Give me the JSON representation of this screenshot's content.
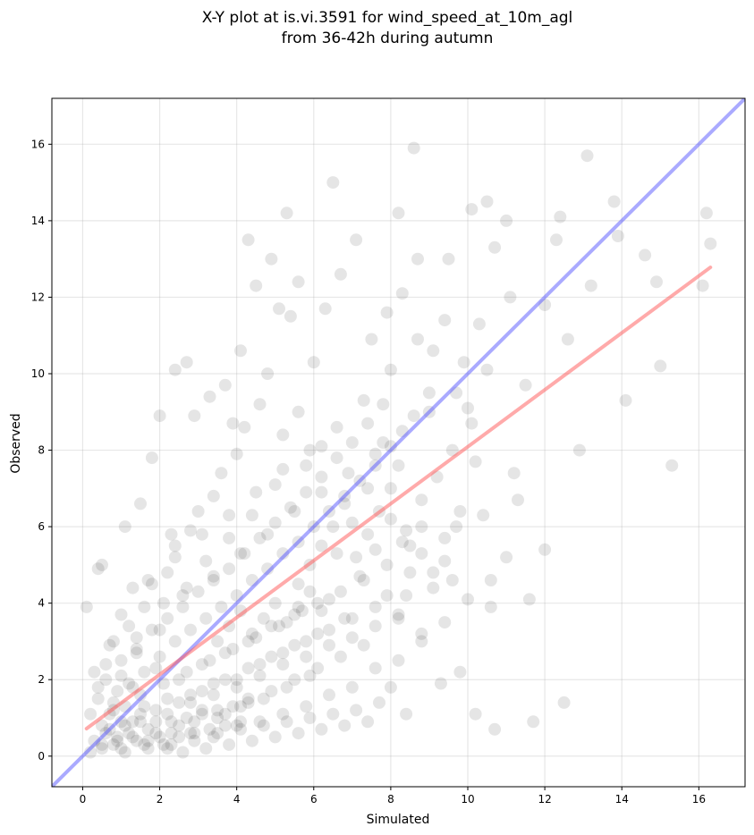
{
  "chart_data": {
    "type": "scatter",
    "title": "X-Y plot at is.vi.3591 for wind_speed_at_10m_agl",
    "subtitle": "from 36-42h during autumn",
    "xlabel": "Simulated",
    "ylabel": "Observed",
    "xlim": [
      -0.8,
      17.2
    ],
    "ylim": [
      -0.8,
      17.2
    ],
    "xticks": [
      0,
      2,
      4,
      6,
      8,
      10,
      12,
      14,
      16
    ],
    "yticks": [
      0,
      2,
      4,
      6,
      8,
      10,
      12,
      14,
      16
    ],
    "grid": true,
    "point_color": "#000000",
    "point_opacity": 0.1,
    "reference_line": {
      "color": "#5555ff",
      "opacity": 0.5,
      "from": [
        -0.8,
        -0.8
      ],
      "to": [
        17.2,
        17.2
      ]
    },
    "regression_line": {
      "color": "#ff5555",
      "opacity": 0.5,
      "from": [
        0.1,
        0.72
      ],
      "to": [
        16.3,
        12.78
      ]
    },
    "points": [
      [
        0.3,
        0.4
      ],
      [
        0.5,
        0.8
      ],
      [
        0.7,
        1.1
      ],
      [
        0.9,
        0.5
      ],
      [
        1.1,
        1.3
      ],
      [
        1.3,
        0.9
      ],
      [
        1.5,
        1.6
      ],
      [
        1.7,
        0.7
      ],
      [
        1.9,
        1.2
      ],
      [
        2.1,
        1.9
      ],
      [
        2.3,
        0.6
      ],
      [
        2.5,
        1.4
      ],
      [
        2.7,
        2.2
      ],
      [
        2.9,
        0.9
      ],
      [
        3.1,
        1.7
      ],
      [
        3.3,
        2.5
      ],
      [
        3.5,
        1.0
      ],
      [
        3.7,
        2.0
      ],
      [
        3.9,
        2.8
      ],
      [
        4.1,
        1.3
      ],
      [
        4.3,
        2.3
      ],
      [
        4.5,
        3.1
      ],
      [
        4.7,
        1.5
      ],
      [
        4.9,
        2.6
      ],
      [
        5.1,
        3.4
      ],
      [
        5.3,
        1.8
      ],
      [
        5.5,
        2.9
      ],
      [
        5.7,
        3.8
      ],
      [
        5.9,
        2.1
      ],
      [
        6.1,
        3.2
      ],
      [
        0.4,
        1.8
      ],
      [
        0.6,
        2.4
      ],
      [
        0.8,
        3.0
      ],
      [
        1.0,
        2.1
      ],
      [
        1.2,
        3.4
      ],
      [
        1.4,
        2.7
      ],
      [
        1.6,
        3.9
      ],
      [
        1.8,
        4.5
      ],
      [
        2.0,
        3.3
      ],
      [
        2.2,
        4.8
      ],
      [
        2.4,
        5.5
      ],
      [
        2.6,
        4.2
      ],
      [
        2.8,
        5.9
      ],
      [
        3.0,
        6.4
      ],
      [
        3.2,
        5.1
      ],
      [
        3.4,
        6.8
      ],
      [
        3.6,
        7.4
      ],
      [
        3.8,
        5.7
      ],
      [
        4.0,
        7.9
      ],
      [
        4.2,
        8.6
      ],
      [
        4.4,
        6.3
      ],
      [
        4.6,
        9.2
      ],
      [
        4.8,
        10.0
      ],
      [
        5.0,
        7.1
      ],
      [
        5.2,
        8.4
      ],
      [
        5.4,
        11.5
      ],
      [
        5.6,
        9.0
      ],
      [
        5.8,
        7.6
      ],
      [
        6.0,
        10.3
      ],
      [
        6.2,
        8.1
      ],
      [
        0.2,
        0.1
      ],
      [
        0.5,
        0.2
      ],
      [
        0.8,
        0.3
      ],
      [
        1.1,
        0.1
      ],
      [
        1.4,
        0.4
      ],
      [
        1.7,
        0.2
      ],
      [
        2.0,
        0.5
      ],
      [
        2.3,
        0.3
      ],
      [
        2.6,
        0.1
      ],
      [
        2.9,
        0.4
      ],
      [
        3.2,
        0.2
      ],
      [
        3.5,
        0.6
      ],
      [
        3.8,
        0.3
      ],
      [
        4.1,
        0.7
      ],
      [
        4.4,
        0.4
      ],
      [
        4.7,
        0.8
      ],
      [
        5.0,
        0.5
      ],
      [
        5.3,
        0.9
      ],
      [
        5.6,
        0.6
      ],
      [
        5.9,
        1.0
      ],
      [
        6.2,
        0.7
      ],
      [
        6.5,
        1.1
      ],
      [
        6.8,
        0.8
      ],
      [
        7.1,
        1.2
      ],
      [
        7.4,
        0.9
      ],
      [
        7.7,
        1.4
      ],
      [
        8.0,
        1.8
      ],
      [
        8.4,
        1.1
      ],
      [
        8.8,
        3.2
      ],
      [
        9.3,
        1.9
      ],
      [
        6.4,
        4.1
      ],
      [
        6.6,
        5.3
      ],
      [
        6.8,
        3.6
      ],
      [
        7.0,
        6.1
      ],
      [
        7.2,
        4.7
      ],
      [
        7.4,
        7.0
      ],
      [
        7.6,
        5.4
      ],
      [
        7.8,
        8.2
      ],
      [
        8.0,
        6.2
      ],
      [
        8.2,
        7.6
      ],
      [
        8.4,
        5.9
      ],
      [
        8.6,
        8.9
      ],
      [
        8.8,
        6.7
      ],
      [
        9.0,
        9.5
      ],
      [
        9.2,
        7.3
      ],
      [
        9.4,
        5.1
      ],
      [
        9.6,
        8.0
      ],
      [
        9.8,
        6.4
      ],
      [
        10.0,
        9.1
      ],
      [
        10.2,
        7.7
      ],
      [
        6.3,
        11.7
      ],
      [
        6.7,
        12.6
      ],
      [
        7.1,
        13.5
      ],
      [
        7.5,
        10.9
      ],
      [
        7.9,
        11.6
      ],
      [
        8.3,
        12.1
      ],
      [
        8.7,
        13.0
      ],
      [
        9.1,
        10.6
      ],
      [
        9.5,
        13.0
      ],
      [
        9.9,
        10.3
      ],
      [
        10.3,
        11.3
      ],
      [
        10.7,
        13.3
      ],
      [
        11.1,
        12.0
      ],
      [
        10.5,
        14.5
      ],
      [
        11.0,
        14.0
      ],
      [
        11.3,
        6.7
      ],
      [
        11.5,
        9.7
      ],
      [
        12.0,
        11.8
      ],
      [
        12.3,
        13.5
      ],
      [
        12.6,
        10.9
      ],
      [
        12.9,
        8.0
      ],
      [
        13.2,
        12.3
      ],
      [
        13.8,
        14.5
      ],
      [
        14.1,
        9.3
      ],
      [
        14.6,
        13.1
      ],
      [
        14.9,
        12.4
      ],
      [
        15.0,
        10.2
      ],
      [
        15.3,
        7.6
      ],
      [
        16.1,
        12.3
      ],
      [
        16.3,
        13.4
      ],
      [
        8.6,
        15.9
      ],
      [
        13.1,
        15.7
      ],
      [
        6.5,
        15.0
      ],
      [
        5.3,
        14.2
      ],
      [
        8.2,
        14.2
      ],
      [
        12.4,
        14.1
      ],
      [
        16.2,
        14.2
      ],
      [
        13.9,
        13.6
      ],
      [
        10.1,
        14.3
      ],
      [
        4.3,
        13.5
      ],
      [
        10.2,
        1.1
      ],
      [
        10.7,
        0.7
      ],
      [
        11.7,
        0.9
      ],
      [
        12.5,
        1.4
      ],
      [
        9.8,
        2.2
      ],
      [
        11.6,
        4.1
      ],
      [
        12.0,
        5.4
      ],
      [
        10.6,
        3.9
      ],
      [
        10.4,
        6.3
      ],
      [
        11.2,
        7.4
      ],
      [
        0.1,
        3.9
      ],
      [
        0.4,
        4.9
      ],
      [
        0.5,
        5.0
      ],
      [
        1.1,
        6.0
      ],
      [
        1.5,
        6.6
      ],
      [
        1.8,
        7.8
      ],
      [
        2.0,
        8.9
      ],
      [
        2.4,
        10.1
      ],
      [
        2.7,
        10.3
      ],
      [
        2.9,
        8.9
      ],
      [
        3.3,
        9.4
      ],
      [
        3.7,
        9.7
      ],
      [
        4.1,
        10.6
      ],
      [
        4.5,
        12.3
      ],
      [
        4.9,
        13.0
      ],
      [
        5.1,
        11.7
      ],
      [
        5.6,
        12.4
      ],
      [
        3.9,
        8.7
      ],
      [
        2.3,
        5.8
      ],
      [
        1.3,
        4.4
      ],
      [
        0.9,
        1.7
      ],
      [
        1.2,
        0.6
      ],
      [
        1.5,
        1.1
      ],
      [
        1.9,
        0.9
      ],
      [
        2.2,
        1.5
      ],
      [
        2.5,
        0.8
      ],
      [
        2.8,
        1.6
      ],
      [
        3.1,
        1.2
      ],
      [
        3.4,
        1.9
      ],
      [
        3.7,
        1.1
      ],
      [
        4.0,
        2.0
      ],
      [
        4.3,
        1.4
      ],
      [
        4.6,
        2.4
      ],
      [
        4.9,
        1.7
      ],
      [
        5.2,
        2.7
      ],
      [
        5.5,
        2.0
      ],
      [
        5.8,
        3.0
      ],
      [
        6.1,
        2.3
      ],
      [
        6.4,
        3.3
      ],
      [
        6.7,
        2.6
      ],
      [
        7.0,
        3.6
      ],
      [
        7.3,
        2.9
      ],
      [
        7.6,
        3.9
      ],
      [
        7.9,
        4.2
      ],
      [
        8.2,
        3.7
      ],
      [
        8.5,
        4.8
      ],
      [
        8.8,
        5.3
      ],
      [
        9.1,
        4.4
      ],
      [
        9.4,
        5.7
      ],
      [
        9.7,
        6.0
      ],
      [
        0.3,
        2.2
      ],
      [
        0.7,
        2.9
      ],
      [
        1.0,
        3.7
      ],
      [
        1.4,
        3.1
      ],
      [
        1.7,
        4.6
      ],
      [
        2.1,
        4.0
      ],
      [
        2.4,
        5.2
      ],
      [
        2.7,
        4.4
      ],
      [
        3.1,
        5.8
      ],
      [
        3.4,
        4.7
      ],
      [
        3.8,
        6.3
      ],
      [
        4.1,
        5.3
      ],
      [
        4.5,
        6.9
      ],
      [
        4.8,
        5.8
      ],
      [
        5.2,
        7.5
      ],
      [
        5.5,
        6.4
      ],
      [
        5.9,
        8.0
      ],
      [
        6.2,
        6.9
      ],
      [
        6.6,
        8.6
      ],
      [
        6.9,
        7.4
      ],
      [
        7.3,
        9.3
      ],
      [
        7.6,
        7.9
      ],
      [
        8.0,
        10.1
      ],
      [
        8.3,
        8.5
      ],
      [
        8.7,
        10.9
      ],
      [
        9.0,
        9.0
      ],
      [
        9.4,
        11.4
      ],
      [
        9.7,
        9.5
      ],
      [
        10.1,
        8.7
      ],
      [
        10.5,
        10.1
      ],
      [
        0.6,
        0.6
      ],
      [
        0.8,
        1.4
      ],
      [
        1.0,
        0.9
      ],
      [
        1.3,
        1.8
      ],
      [
        1.6,
        1.3
      ],
      [
        1.9,
        2.3
      ],
      [
        2.2,
        1.1
      ],
      [
        2.5,
        2.0
      ],
      [
        2.8,
        1.4
      ],
      [
        3.1,
        2.4
      ],
      [
        3.4,
        1.6
      ],
      [
        3.7,
        2.7
      ],
      [
        4.0,
        1.8
      ],
      [
        4.3,
        3.0
      ],
      [
        4.6,
        2.1
      ],
      [
        4.9,
        3.4
      ],
      [
        5.2,
        2.4
      ],
      [
        5.5,
        3.7
      ],
      [
        5.8,
        2.6
      ],
      [
        6.1,
        4.0
      ],
      [
        6.4,
        2.9
      ],
      [
        6.7,
        4.3
      ],
      [
        7.0,
        3.1
      ],
      [
        7.3,
        4.6
      ],
      [
        7.6,
        3.4
      ],
      [
        7.9,
        5.0
      ],
      [
        8.2,
        3.6
      ],
      [
        8.5,
        5.5
      ],
      [
        8.8,
        6.0
      ],
      [
        9.1,
        4.8
      ],
      [
        1.0,
        0.2
      ],
      [
        1.6,
        0.3
      ],
      [
        2.2,
        0.2
      ],
      [
        2.8,
        0.6
      ],
      [
        3.4,
        0.5
      ],
      [
        4.0,
        0.8
      ],
      [
        4.6,
        0.9
      ],
      [
        5.2,
        1.1
      ],
      [
        5.8,
        1.3
      ],
      [
        6.4,
        1.6
      ],
      [
        7.0,
        1.8
      ],
      [
        7.6,
        2.3
      ],
      [
        8.2,
        2.5
      ],
      [
        8.8,
        3.0
      ],
      [
        9.4,
        3.5
      ],
      [
        10.0,
        4.1
      ],
      [
        10.6,
        4.6
      ],
      [
        11.0,
        5.2
      ],
      [
        9.6,
        4.6
      ],
      [
        8.4,
        4.2
      ],
      [
        0.2,
        1.1
      ],
      [
        0.4,
        1.5
      ],
      [
        0.6,
        2.0
      ],
      [
        0.8,
        1.2
      ],
      [
        1.0,
        2.5
      ],
      [
        1.2,
        1.9
      ],
      [
        1.4,
        2.8
      ],
      [
        1.6,
        2.2
      ],
      [
        1.8,
        3.3
      ],
      [
        2.0,
        2.6
      ],
      [
        2.2,
        3.6
      ],
      [
        2.4,
        3.0
      ],
      [
        2.6,
        3.9
      ],
      [
        2.8,
        3.3
      ],
      [
        3.0,
        4.3
      ],
      [
        3.2,
        3.6
      ],
      [
        3.4,
        4.6
      ],
      [
        3.6,
        3.9
      ],
      [
        3.8,
        4.9
      ],
      [
        4.0,
        4.2
      ],
      [
        4.2,
        5.3
      ],
      [
        4.4,
        4.6
      ],
      [
        4.6,
        5.7
      ],
      [
        4.8,
        4.9
      ],
      [
        5.0,
        6.1
      ],
      [
        5.2,
        5.3
      ],
      [
        5.4,
        6.5
      ],
      [
        5.6,
        5.6
      ],
      [
        5.8,
        6.9
      ],
      [
        6.0,
        6.0
      ],
      [
        6.2,
        7.3
      ],
      [
        6.4,
        6.4
      ],
      [
        6.6,
        7.8
      ],
      [
        6.8,
        6.8
      ],
      [
        7.0,
        8.2
      ],
      [
        7.2,
        7.2
      ],
      [
        7.4,
        8.7
      ],
      [
        7.6,
        7.6
      ],
      [
        7.8,
        9.2
      ],
      [
        8.0,
        8.1
      ],
      [
        0.5,
        0.3
      ],
      [
        0.7,
        0.7
      ],
      [
        0.9,
        0.4
      ],
      [
        1.1,
        0.8
      ],
      [
        1.3,
        0.5
      ],
      [
        1.5,
        0.9
      ],
      [
        1.7,
        0.4
      ],
      [
        1.9,
        0.6
      ],
      [
        2.1,
        0.3
      ],
      [
        2.3,
        0.9
      ],
      [
        2.5,
        0.5
      ],
      [
        2.7,
        1.0
      ],
      [
        2.9,
        0.6
      ],
      [
        3.1,
        1.1
      ],
      [
        3.3,
        0.7
      ],
      [
        3.5,
        1.2
      ],
      [
        3.7,
        0.8
      ],
      [
        3.9,
        1.3
      ],
      [
        4.1,
        0.9
      ],
      [
        4.3,
        1.5
      ],
      [
        5.6,
        4.5
      ],
      [
        5.9,
        5.0
      ],
      [
        6.2,
        5.5
      ],
      [
        6.5,
        6.0
      ],
      [
        6.8,
        6.6
      ],
      [
        7.1,
        5.2
      ],
      [
        7.4,
        5.8
      ],
      [
        7.7,
        6.4
      ],
      [
        8.0,
        7.0
      ],
      [
        8.3,
        5.6
      ],
      [
        3.5,
        3.0
      ],
      [
        3.8,
        3.4
      ],
      [
        4.1,
        3.8
      ],
      [
        4.4,
        3.2
      ],
      [
        4.7,
        3.6
      ],
      [
        5.0,
        4.0
      ],
      [
        5.3,
        3.5
      ],
      [
        5.6,
        3.9
      ],
      [
        5.9,
        4.3
      ],
      [
        6.2,
        3.8
      ]
    ]
  }
}
